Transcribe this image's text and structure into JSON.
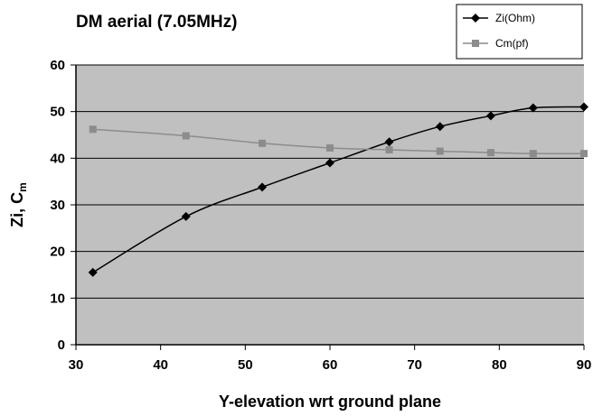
{
  "chart_data": {
    "type": "line",
    "title": "DM aerial (7.05MHz)",
    "xlabel": "Y-elevation wrt ground plane",
    "ylabel_main": "Zi, C",
    "ylabel_sub": "m",
    "xlim": [
      30,
      90
    ],
    "ylim": [
      0,
      60
    ],
    "x_ticks": [
      "30",
      "40",
      "50",
      "60",
      "70",
      "80",
      "90"
    ],
    "y_ticks": [
      "0",
      "10",
      "20",
      "30",
      "40",
      "50",
      "60"
    ],
    "grid": true,
    "legend_position": "top-right",
    "series": [
      {
        "name": "Zi(Ohm)",
        "color": "#000000",
        "marker": "diamond",
        "x": [
          32,
          43,
          52,
          60,
          67,
          73,
          79,
          84,
          90
        ],
        "y": [
          15.5,
          27.5,
          33.8,
          39,
          43.5,
          46.8,
          49.1,
          50.8,
          51
        ]
      },
      {
        "name": "Cm(pf)",
        "color": "#8c8c8c",
        "marker": "square",
        "x": [
          32,
          43,
          52,
          60,
          67,
          73,
          79,
          84,
          90
        ],
        "y": [
          46.2,
          44.8,
          43.2,
          42.2,
          41.8,
          41.5,
          41.2,
          41,
          41
        ]
      }
    ]
  }
}
